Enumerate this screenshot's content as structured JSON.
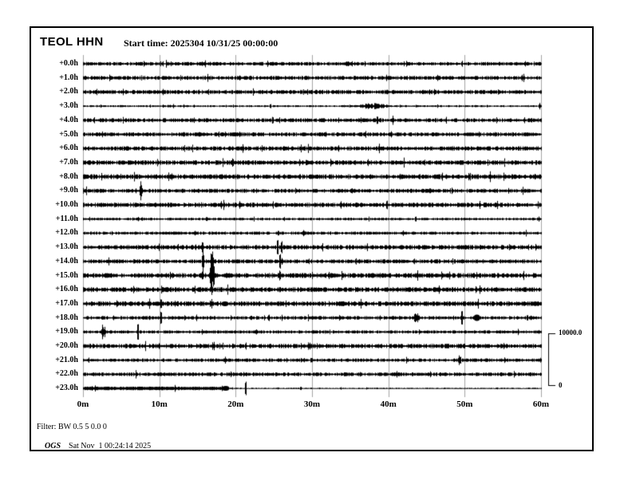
{
  "header": {
    "station": "TEOL HHN",
    "start_time_label": "Start time: 2025304 10/31/25 00:00:00"
  },
  "footer": {
    "filter": "Filter: BW 0.5 5 0.0 0",
    "agency": "OGS",
    "timestamp": "Sat Nov  1 00:24:14 2025"
  },
  "scale_bar": {
    "max_label": "10000.0",
    "min_label": "0"
  },
  "chart_data": {
    "type": "line",
    "subtype": "helicorder-seismogram",
    "title": "TEOL HHN",
    "start_time": "2025304 10/31/25 00:00:00",
    "x_axis": {
      "ticks": [
        "0m",
        "10m",
        "20m",
        "30m",
        "40m",
        "50m",
        "60m"
      ],
      "min_minutes": 0,
      "max_minutes": 60,
      "grid": true
    },
    "y_axis": {
      "hours_per_trace": 1,
      "num_traces": 24
    },
    "amplitude_scale": {
      "max": 10000.0,
      "min": 0
    },
    "colors": {
      "trace": "#000000",
      "grid": "#a3a3a3",
      "background": "#ffffff",
      "text": "#000000"
    },
    "rows": [
      {
        "label": "+0.0h",
        "noise_amp": 2.0,
        "events": [
          {
            "t": 34.5,
            "amp": 4,
            "width": 12,
            "type": "burst"
          }
        ]
      },
      {
        "label": "+1.0h",
        "noise_amp": 2.2,
        "events": [
          {
            "t": 40.2,
            "amp": 4,
            "width": 2,
            "type": "spike"
          },
          {
            "t": 57.5,
            "amp": 4,
            "width": 3,
            "type": "spike"
          }
        ]
      },
      {
        "label": "+2.0h",
        "noise_amp": 2.3,
        "events": [
          {
            "t": 30.5,
            "amp": 4,
            "width": 2,
            "type": "spike"
          }
        ]
      },
      {
        "label": "+3.0h",
        "noise_amp": 1.1,
        "events": [
          {
            "t": 38.0,
            "amp": 4,
            "width": 50,
            "type": "burst"
          },
          {
            "t": 24.6,
            "amp": 4,
            "width": 2,
            "type": "spike"
          },
          {
            "t": 59.8,
            "amp": 4,
            "width": 3,
            "type": "spike"
          }
        ]
      },
      {
        "label": "+4.0h",
        "noise_amp": 2.2,
        "events": [
          {
            "t": 24.9,
            "amp": 7,
            "width": 2,
            "type": "spike"
          },
          {
            "t": 40.6,
            "amp": 5,
            "width": 3,
            "type": "spike"
          }
        ]
      },
      {
        "label": "+5.0h",
        "noise_amp": 2.2,
        "events": [
          {
            "t": 2.5,
            "amp": 4,
            "width": 4,
            "type": "burst"
          },
          {
            "t": 15.5,
            "amp": 5,
            "width": 8,
            "type": "burst"
          }
        ]
      },
      {
        "label": "+6.0h",
        "noise_amp": 2.4,
        "events": [
          {
            "t": 21.0,
            "amp": 5,
            "width": 3,
            "type": "spike"
          },
          {
            "t": 33.5,
            "amp": 4,
            "width": 3,
            "type": "spike"
          }
        ]
      },
      {
        "label": "+7.0h",
        "noise_amp": 2.5,
        "events": [
          {
            "t": 19.7,
            "amp": 8,
            "width": 2,
            "type": "spike"
          },
          {
            "t": 29.3,
            "amp": 5,
            "width": 2,
            "type": "spike"
          }
        ]
      },
      {
        "label": "+8.0h",
        "noise_amp": 2.7,
        "events": [
          {
            "t": 0.6,
            "amp": 5,
            "width": 4,
            "type": "burst"
          },
          {
            "t": 41.5,
            "amp": 4,
            "width": 3,
            "type": "spike"
          }
        ]
      },
      {
        "label": "+9.0h",
        "noise_amp": 2.2,
        "events": [
          {
            "t": 7.6,
            "amp": 13,
            "width": 3,
            "type": "spike"
          },
          {
            "t": 35.2,
            "amp": 5,
            "width": 2,
            "type": "spike"
          },
          {
            "t": 45.5,
            "amp": 4,
            "width": 6,
            "type": "burst"
          }
        ]
      },
      {
        "label": "+10.0h",
        "noise_amp": 2.5,
        "events": [
          {
            "t": 39.8,
            "amp": 8,
            "width": 2,
            "type": "spike"
          }
        ]
      },
      {
        "label": "+11.0h",
        "noise_amp": 1.5,
        "events": [
          {
            "t": 16.2,
            "amp": 4,
            "width": 2,
            "type": "spike"
          },
          {
            "t": 43.6,
            "amp": 5,
            "width": 2,
            "type": "spike"
          }
        ]
      },
      {
        "label": "+12.0h",
        "noise_amp": 1.7,
        "events": [
          {
            "t": 25.6,
            "amp": 5,
            "width": 2,
            "type": "spike"
          },
          {
            "t": 29.0,
            "amp": 4,
            "width": 8,
            "type": "burst"
          }
        ]
      },
      {
        "label": "+13.0h",
        "noise_amp": 2.5,
        "events": [
          {
            "t": 15.7,
            "amp": 11,
            "width": 2,
            "type": "spike"
          },
          {
            "t": 25.5,
            "amp": 13,
            "width": 2,
            "type": "spike"
          },
          {
            "t": 26.0,
            "amp": 11,
            "width": 2,
            "type": "spike"
          }
        ]
      },
      {
        "label": "+14.0h",
        "noise_amp": 2.3,
        "events": [
          {
            "t": 15.7,
            "amp": 16,
            "width": 3,
            "type": "spike"
          },
          {
            "t": 16.9,
            "amp": 17,
            "width": 5,
            "type": "burst"
          },
          {
            "t": 25.8,
            "amp": 15,
            "width": 2,
            "type": "spike"
          }
        ]
      },
      {
        "label": "+15.0h",
        "noise_amp": 2.7,
        "events": [
          {
            "t": 15.7,
            "amp": 8,
            "width": 2,
            "type": "spike"
          },
          {
            "t": 16.9,
            "amp": 21,
            "width": 8,
            "type": "burst"
          },
          {
            "t": 25.8,
            "amp": 9,
            "width": 2,
            "type": "spike"
          }
        ]
      },
      {
        "label": "+16.0h",
        "noise_amp": 2.7,
        "events": [
          {
            "t": 16.9,
            "amp": 10,
            "width": 4,
            "type": "burst"
          },
          {
            "t": 25.8,
            "amp": 5,
            "width": 2,
            "type": "spike"
          },
          {
            "t": 31.0,
            "amp": 4,
            "width": 2,
            "type": "spike"
          }
        ]
      },
      {
        "label": "+17.0h",
        "noise_amp": 2.7,
        "events": [
          {
            "t": 10.2,
            "amp": 9,
            "width": 2,
            "type": "spike"
          },
          {
            "t": 16.9,
            "amp": 6,
            "width": 3,
            "type": "spike"
          },
          {
            "t": 18.6,
            "amp": 3,
            "width": 9,
            "type": "blob"
          }
        ]
      },
      {
        "label": "+18.0h",
        "noise_amp": 2.0,
        "events": [
          {
            "t": 10.2,
            "amp": 12,
            "width": 2,
            "type": "spike"
          },
          {
            "t": 22.1,
            "amp": 5,
            "width": 2,
            "type": "spike"
          },
          {
            "t": 24.4,
            "amp": 6,
            "width": 2,
            "type": "spike"
          },
          {
            "t": 43.7,
            "amp": 7,
            "width": 10,
            "type": "burst"
          },
          {
            "t": 49.7,
            "amp": 14,
            "width": 2,
            "type": "spike"
          },
          {
            "t": 51.6,
            "amp": 4,
            "width": 8,
            "type": "blob"
          }
        ]
      },
      {
        "label": "+19.0h",
        "noise_amp": 1.8,
        "events": [
          {
            "t": 2.7,
            "amp": 11,
            "width": 7,
            "type": "burst"
          },
          {
            "t": 7.2,
            "amp": 17,
            "width": 2,
            "type": "spike"
          },
          {
            "t": 22.7,
            "amp": 5,
            "width": 4,
            "type": "burst"
          }
        ]
      },
      {
        "label": "+20.0h",
        "noise_amp": 2.5,
        "events": [
          {
            "t": 29.7,
            "amp": 7,
            "width": 5,
            "type": "burst"
          }
        ]
      },
      {
        "label": "+21.0h",
        "noise_amp": 1.9,
        "events": [
          {
            "t": 30.0,
            "amp": 4,
            "width": 2,
            "type": "spike"
          },
          {
            "t": 49.3,
            "amp": 11,
            "width": 4,
            "type": "burst"
          }
        ]
      },
      {
        "label": "+22.0h",
        "noise_amp": 2.1,
        "events": [
          {
            "t": 21.4,
            "amp": 4,
            "width": 2,
            "type": "spike"
          },
          {
            "t": 34.3,
            "amp": 4,
            "width": 2,
            "type": "spike"
          }
        ]
      },
      {
        "label": "+23.0h",
        "noise_amp": 1.0,
        "segments": [
          {
            "from": 0,
            "to": 18.4,
            "amp": 1.9,
            "style": "solid"
          },
          {
            "from": 18.4,
            "to": 60,
            "amp": 0.8,
            "style": "noise"
          }
        ],
        "events": [
          {
            "t": 18.7,
            "amp": 3,
            "width": 9,
            "type": "blob"
          },
          {
            "t": 21.3,
            "amp": 13,
            "width": 2,
            "type": "spike"
          },
          {
            "t": 28.5,
            "amp": 3,
            "width": 2,
            "type": "spike"
          }
        ]
      }
    ]
  }
}
